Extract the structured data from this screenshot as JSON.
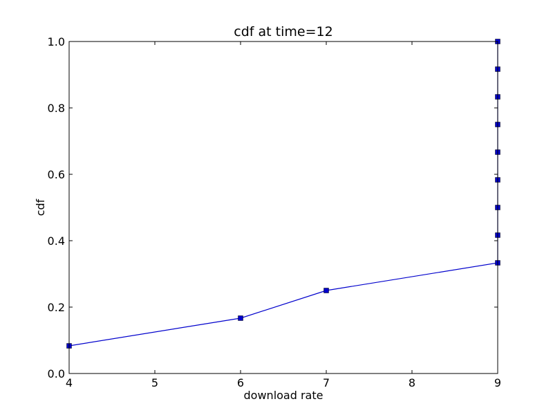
{
  "chart_data": {
    "type": "line",
    "title": "cdf at time=12",
    "xlabel": "download rate",
    "ylabel": "cdf",
    "xlim": [
      4,
      9
    ],
    "ylim": [
      0,
      1
    ],
    "x_ticks": [
      4,
      5,
      6,
      7,
      8,
      9
    ],
    "x_tick_labels": [
      "4",
      "5",
      "6",
      "7",
      "8",
      "9"
    ],
    "y_ticks": [
      0,
      0.2,
      0.4,
      0.6,
      0.8,
      1.0
    ],
    "y_tick_labels": [
      "0.0",
      "0.2",
      "0.4",
      "0.6",
      "0.8",
      "1.0"
    ],
    "grid": false,
    "legend": "none",
    "series": [
      {
        "color": "#0000cc",
        "marker": "square",
        "x": [
          4,
          6,
          7,
          9,
          9,
          9,
          9,
          9,
          9,
          9,
          9,
          9
        ],
        "y": [
          0.0833,
          0.1667,
          0.25,
          0.3333,
          0.4167,
          0.5,
          0.5833,
          0.6667,
          0.75,
          0.8333,
          0.9167,
          1.0
        ]
      }
    ]
  }
}
